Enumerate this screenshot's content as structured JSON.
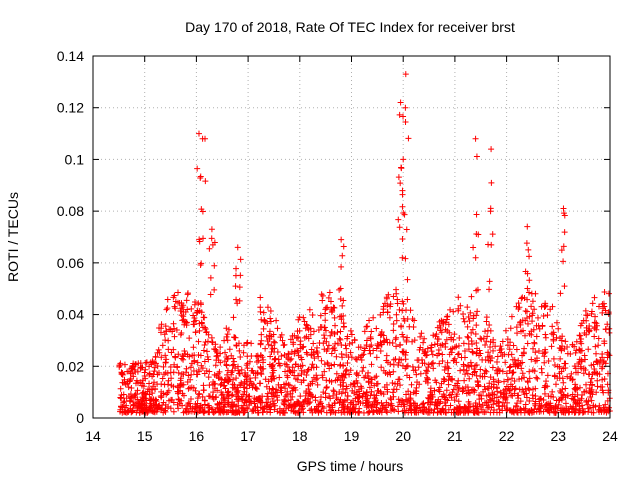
{
  "chart_data": {
    "type": "scatter",
    "title": "Day 170 of 2018, Rate Of TEC Index for receiver brst",
    "xlabel": "GPS time / hours",
    "ylabel": "ROTI / TECUs",
    "xlim": [
      14,
      24
    ],
    "ylim": [
      0,
      0.14
    ],
    "xticks": [
      14,
      15,
      16,
      17,
      18,
      19,
      20,
      21,
      22,
      23,
      24
    ],
    "yticks": [
      0,
      0.02,
      0.04,
      0.06,
      0.08,
      0.1,
      0.12,
      0.14
    ],
    "xtick_labels": [
      "14",
      "15",
      "16",
      "17",
      "18",
      "19",
      "20",
      "21",
      "22",
      "23",
      "24"
    ],
    "ytick_labels": [
      "0",
      "0.02",
      "0.04",
      "0.06",
      "0.08",
      "0.1",
      "0.12",
      "0.14"
    ],
    "grid": true,
    "marker": "+",
    "series": [
      {
        "name": "ROTI",
        "color": "#ff0000",
        "x_range": [
          14.5,
          24.0
        ],
        "bulk_y_range": [
          0.002,
          0.05
        ],
        "peaks": [
          {
            "x": 16.05,
            "y": 0.11
          },
          {
            "x": 16.12,
            "y": 0.108
          },
          {
            "x": 16.3,
            "y": 0.073
          },
          {
            "x": 16.8,
            "y": 0.066
          },
          {
            "x": 18.8,
            "y": 0.069
          },
          {
            "x": 19.95,
            "y": 0.122
          },
          {
            "x": 20.05,
            "y": 0.133
          },
          {
            "x": 20.0,
            "y": 0.1
          },
          {
            "x": 21.4,
            "y": 0.108
          },
          {
            "x": 21.7,
            "y": 0.104
          },
          {
            "x": 22.4,
            "y": 0.074
          },
          {
            "x": 23.1,
            "y": 0.081
          }
        ]
      }
    ]
  }
}
